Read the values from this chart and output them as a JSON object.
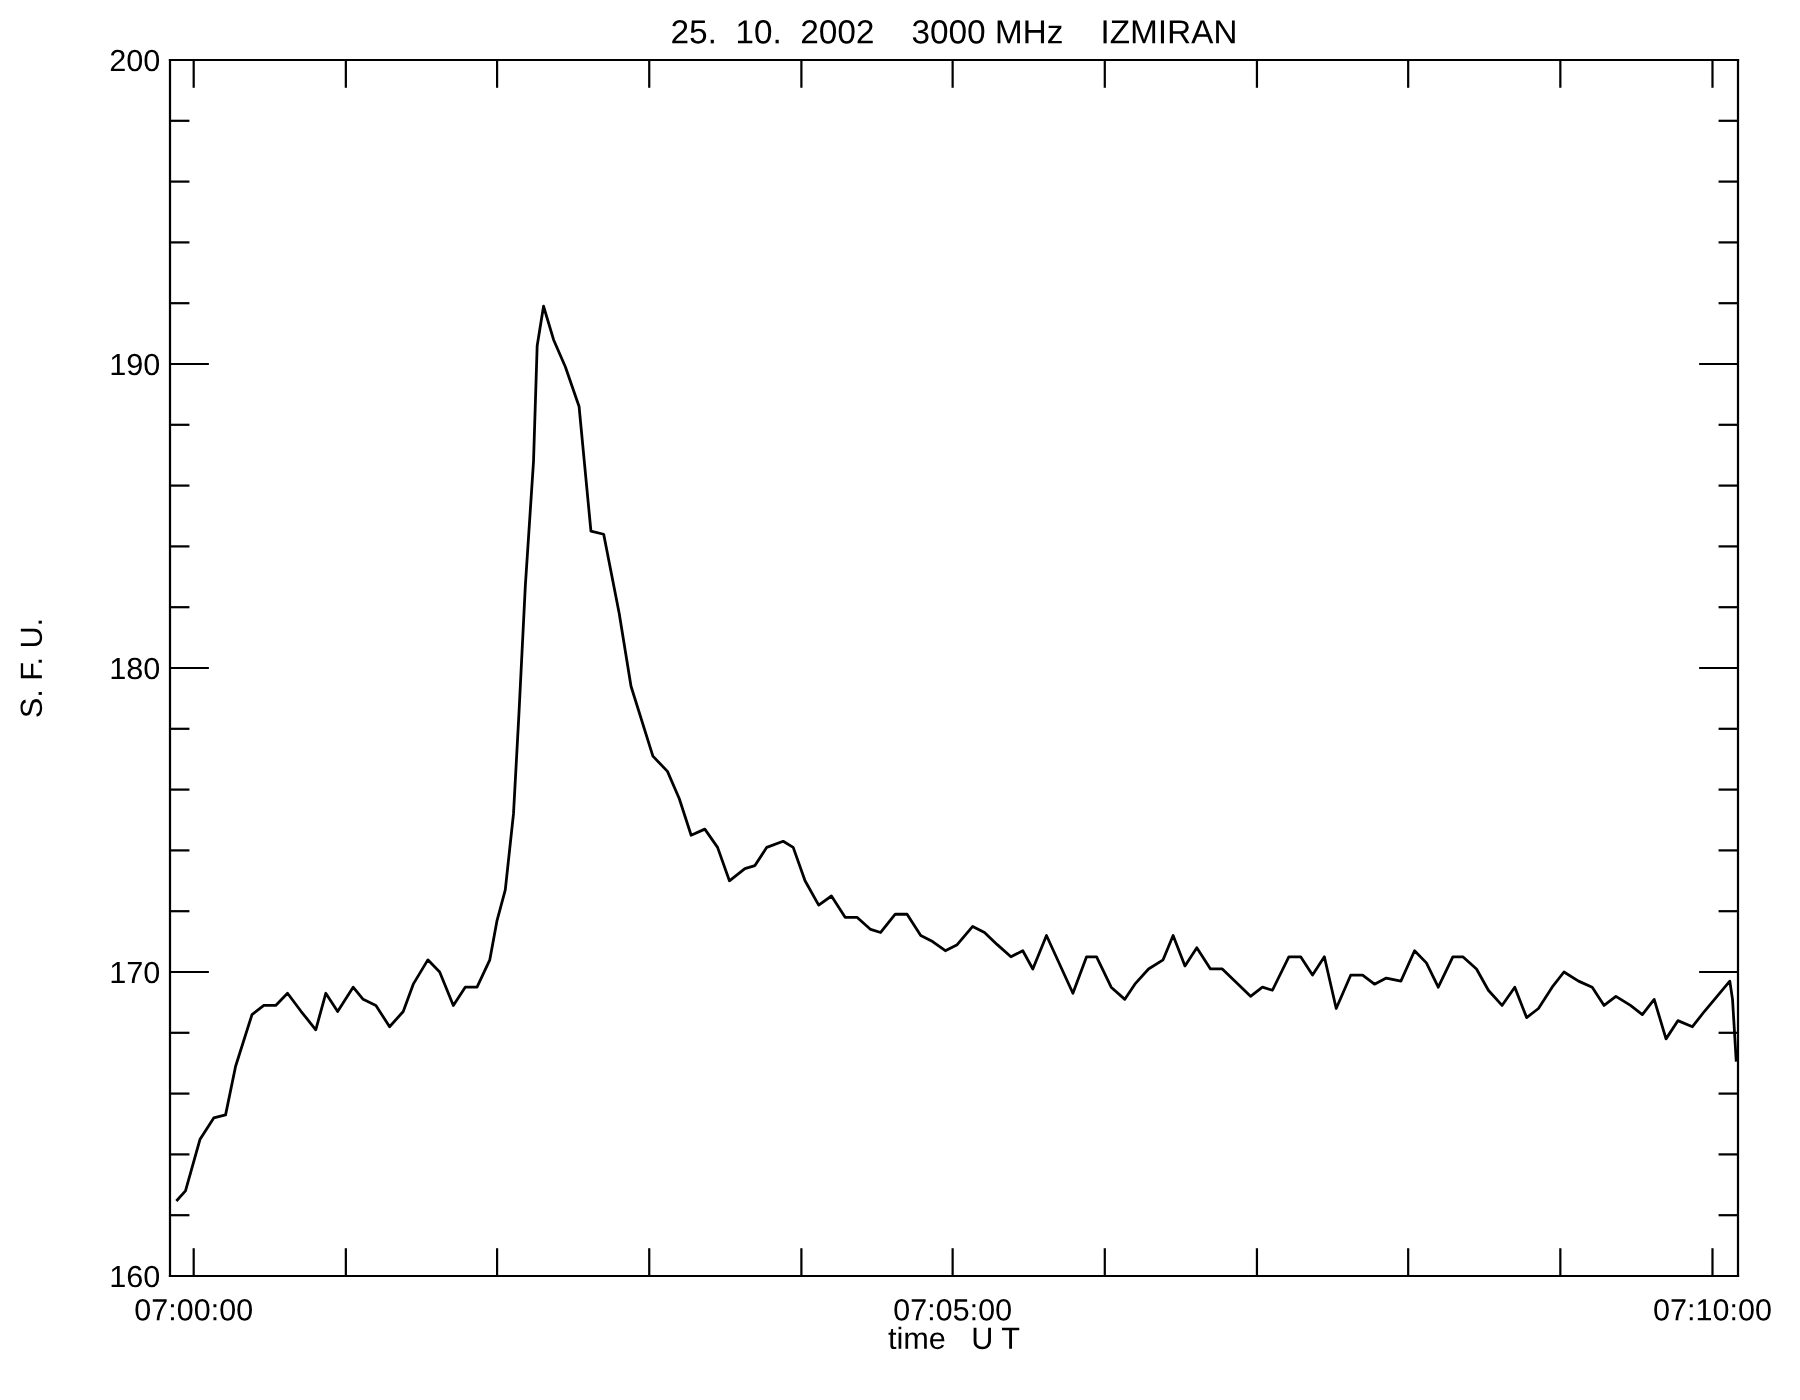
{
  "chart_data": {
    "type": "line",
    "title": "25.  10.  2002    3000 MHz    IZMIRAN",
    "xlabel": "time   U T",
    "ylabel": "S. F. U.",
    "xlim": [
      6.9974,
      7.1695
    ],
    "xticks": [
      {
        "value": 7,
        "label": "07:00:00"
      },
      {
        "value": 7.0167,
        "label": null
      },
      {
        "value": 7.0333,
        "label": null
      },
      {
        "value": 7.05,
        "label": null
      },
      {
        "value": 7.0667,
        "label": null
      },
      {
        "value": 7.0833,
        "label": "07:05:00"
      },
      {
        "value": 7.1,
        "label": null
      },
      {
        "value": 7.1167,
        "label": null
      },
      {
        "value": 7.1333,
        "label": null
      },
      {
        "value": 7.15,
        "label": null
      },
      {
        "value": 7.1667,
        "label": "07:10:00"
      }
    ],
    "ylim": [
      160,
      200
    ],
    "yticks": [
      160,
      {
        "value": 162,
        "label": null
      },
      {
        "value": 164,
        "label": null
      },
      {
        "value": 166,
        "label": null
      },
      {
        "value": 168,
        "label": null
      },
      170,
      {
        "value": 172,
        "label": null
      },
      {
        "value": 174,
        "label": null
      },
      {
        "value": 176,
        "label": null
      },
      {
        "value": 178,
        "label": null
      },
      180,
      {
        "value": 182,
        "label": null
      },
      {
        "value": 184,
        "label": null
      },
      {
        "value": 186,
        "label": null
      },
      {
        "value": 188,
        "label": null
      },
      190,
      {
        "value": 192,
        "label": null
      },
      {
        "value": 194,
        "label": null
      },
      {
        "value": 196,
        "label": null
      },
      {
        "value": 198,
        "label": null
      },
      200
    ],
    "grid": false,
    "legend": false,
    "marker": "none",
    "line_style": "solid",
    "series": [
      {
        "color": "#000000",
        "x": [
          6.9982,
          6.9991,
          7.0007,
          7.0022,
          7.0035,
          7.0046,
          7.0064,
          7.0077,
          7.009,
          7.0103,
          7.0118,
          7.0134,
          7.0145,
          7.0158,
          7.0175,
          7.0186,
          7.02,
          7.0215,
          7.023,
          7.0241,
          7.0257,
          7.027,
          7.0285,
          7.0298,
          7.0311,
          7.0325,
          7.0333,
          7.0342,
          7.0351,
          7.0357,
          7.0364,
          7.0373,
          7.0377,
          7.0384,
          7.0395,
          7.0408,
          7.0423,
          7.0436,
          7.045,
          7.0467,
          7.048,
          7.0504,
          7.052,
          7.0533,
          7.0546,
          7.0561,
          7.0575,
          7.0588,
          7.0605,
          7.0616,
          7.0629,
          7.0647,
          7.0658,
          7.0671,
          7.0686,
          7.07,
          7.0715,
          7.0728,
          7.0743,
          7.0754,
          7.077,
          7.0783,
          7.0798,
          7.0811,
          7.0825,
          7.0838,
          7.0855,
          7.0868,
          7.0882,
          7.0897,
          7.091,
          7.0921,
          7.0936,
          7.0965,
          7.098,
          7.0991,
          7.1007,
          7.1022,
          7.1033,
          7.1048,
          7.1064,
          7.1075,
          7.1088,
          7.1101,
          7.1116,
          7.1129,
          7.116,
          7.1173,
          7.1184,
          7.1202,
          7.1215,
          7.1228,
          7.1241,
          7.1254,
          7.127,
          7.1283,
          7.1296,
          7.1309,
          7.1325,
          7.134,
          7.1353,
          7.1366,
          7.1382,
          7.1393,
          7.1408,
          7.1421,
          7.1436,
          7.145,
          7.1463,
          7.1476,
          7.1491,
          7.1504,
          7.152,
          7.1535,
          7.1548,
          7.1561,
          7.1577,
          7.159,
          7.1603,
          7.1616,
          7.1629,
          7.1645,
          7.1658,
          7.1686,
          7.1689,
          7.1693
        ],
        "values": [
          162.5,
          162.8,
          164.5,
          165.2,
          165.3,
          166.9,
          168.6,
          168.9,
          168.9,
          169.3,
          168.7,
          168.1,
          169.3,
          168.7,
          169.5,
          169.1,
          168.9,
          168.2,
          168.7,
          169.6,
          170.4,
          170.0,
          168.9,
          169.5,
          169.5,
          170.4,
          171.7,
          172.7,
          175.2,
          178.5,
          182.7,
          186.8,
          190.6,
          191.9,
          190.8,
          189.9,
          188.6,
          184.5,
          184.4,
          181.8,
          179.4,
          177.1,
          176.6,
          175.7,
          174.5,
          174.7,
          174.1,
          173.0,
          173.4,
          173.5,
          174.1,
          174.3,
          174.1,
          173.0,
          172.2,
          172.5,
          171.8,
          171.8,
          171.4,
          171.3,
          171.9,
          171.9,
          171.2,
          171.0,
          170.7,
          170.9,
          171.5,
          171.3,
          170.9,
          170.5,
          170.7,
          170.1,
          171.2,
          169.3,
          170.5,
          170.5,
          169.5,
          169.1,
          169.6,
          170.1,
          170.4,
          171.2,
          170.2,
          170.8,
          170.1,
          170.1,
          169.2,
          169.5,
          169.4,
          170.5,
          170.5,
          169.9,
          170.5,
          168.8,
          169.9,
          169.9,
          169.6,
          169.8,
          169.7,
          170.7,
          170.3,
          169.5,
          170.5,
          170.5,
          170.1,
          169.4,
          168.9,
          169.5,
          168.5,
          168.8,
          169.5,
          170.0,
          169.7,
          169.5,
          168.9,
          169.2,
          168.9,
          168.6,
          169.1,
          167.8,
          168.4,
          168.2,
          168.7,
          169.7,
          169.1,
          167.1
        ]
      }
    ]
  }
}
